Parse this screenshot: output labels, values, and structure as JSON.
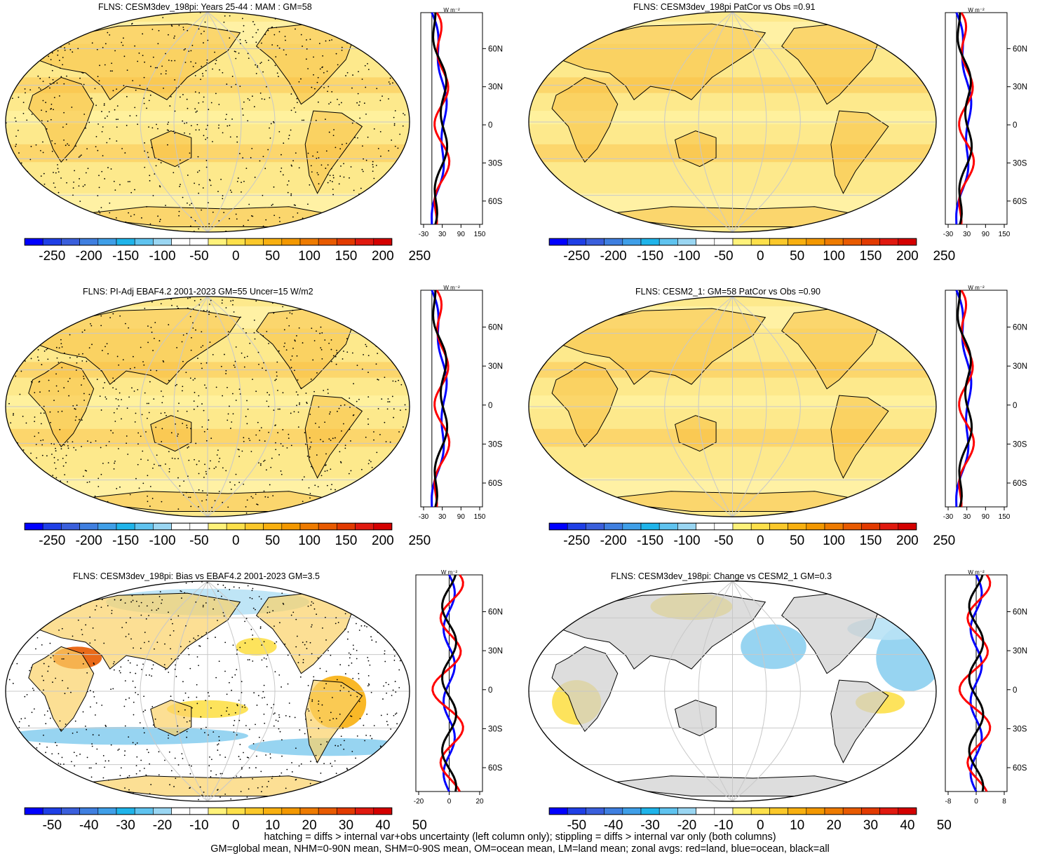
{
  "footer": {
    "line1": "hatching = diffs > internal var+obs uncertainty (left column only); stippling = diffs > internal var only (both columns)",
    "line2": "GM=global mean, NHM=0-90N mean, SHM=0-90S mean, OM=ocean mean, LM=land mean; zonal avgs: red=land, blue=ocean, black=all"
  },
  "units_label": "W m⁻²",
  "lat_labels": [
    "60N",
    "30N",
    "0",
    "30S",
    "60S"
  ],
  "colors": {
    "land": "#ff0000",
    "ocean": "#0000ff",
    "all": "#000000",
    "missing": "#c8c8c8"
  },
  "palette_abs": [
    "#0000ff",
    "#1f3fe6",
    "#3a5fdc",
    "#3f7fe0",
    "#3f9fe8",
    "#1fb4ea",
    "#5fc3ef",
    "#9ad6f2",
    "#ffffff",
    "#ffffff",
    "#fff27a",
    "#fde04a",
    "#fbc82a",
    "#f8b010",
    "#f39800",
    "#ee7b00",
    "#e85a00",
    "#e23a00",
    "#e0190f",
    "#d40000"
  ],
  "panels": [
    {
      "title": "FLNS: CESM3dev_198pi: Years 25-44 : MAM : GM=58",
      "cb_ticks": [
        "-250",
        "-200",
        "-150",
        "-100",
        "-50",
        "0",
        "50",
        "100",
        "150",
        "200",
        "250"
      ],
      "zonal_ticks": [
        "-30",
        "30",
        "90",
        "150"
      ],
      "type": "abs"
    },
    {
      "title": "FLNS: CESM3dev_198pi PatCor vs Obs =0.91",
      "cb_ticks": [
        "-250",
        "-200",
        "-150",
        "-100",
        "-50",
        "0",
        "50",
        "100",
        "150",
        "200",
        "250"
      ],
      "zonal_ticks": [
        "-30",
        "30",
        "90",
        "150"
      ],
      "type": "abs"
    },
    {
      "title": "FLNS: PI-Adj EBAF4.2 2001-2023 GM=55 Uncer=15 W/m2",
      "cb_ticks": [
        "-250",
        "-200",
        "-150",
        "-100",
        "-50",
        "0",
        "50",
        "100",
        "150",
        "200",
        "250"
      ],
      "zonal_ticks": [
        "-30",
        "30",
        "90",
        "150"
      ],
      "type": "abs"
    },
    {
      "title": "FLNS: CESM2_1: GM=58 PatCor vs Obs =0.90",
      "cb_ticks": [
        "-250",
        "-200",
        "-150",
        "-100",
        "-50",
        "0",
        "50",
        "100",
        "150",
        "200",
        "250"
      ],
      "zonal_ticks": [
        "-30",
        "30",
        "90",
        "150"
      ],
      "type": "abs"
    },
    {
      "title": "FLNS: CESM3dev_198pi: Bias vs EBAF4.2 2001-2023 GM=3.5",
      "cb_ticks": [
        "-50",
        "-40",
        "-30",
        "-20",
        "-10",
        "0",
        "10",
        "20",
        "30",
        "40",
        "50"
      ],
      "zonal_ticks": [
        "-20",
        "0",
        "20"
      ],
      "type": "diff"
    },
    {
      "title": "FLNS: CESM3dev_198pi: Change vs CESM2_1 GM=0.3",
      "cb_ticks": [
        "-50",
        "-40",
        "-30",
        "-20",
        "-10",
        "0",
        "10",
        "20",
        "30",
        "40",
        "50"
      ],
      "zonal_ticks": [
        "-8",
        "0",
        "8"
      ],
      "type": "diff"
    }
  ]
}
